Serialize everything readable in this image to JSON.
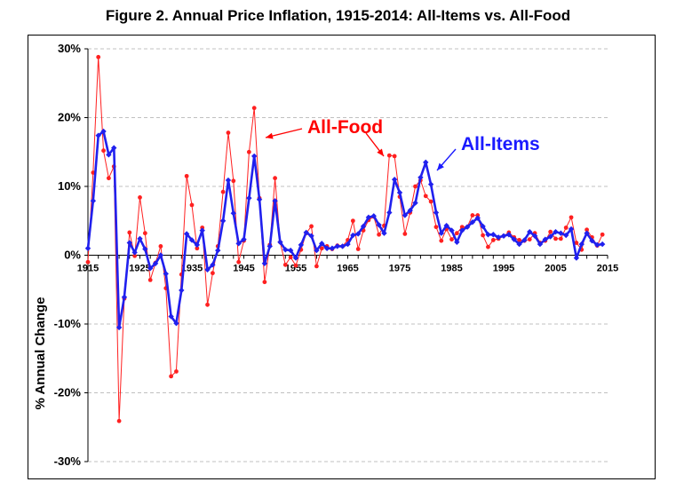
{
  "title": "Figure 2. Annual Price Inflation, 1915-2014: All-Items vs. All-Food",
  "colors": {
    "food": "#ff2020",
    "items": "#2020ee",
    "food_label": "#ff0000",
    "items_label": "#1a1aff",
    "grid": "#c0c0c0"
  },
  "chart_data": {
    "type": "line",
    "title": "Figure 2. Annual Price Inflation, 1915-2014: All-Items vs. All-Food",
    "xlabel": "",
    "ylabel": "% Annual Change",
    "xlim": [
      1915,
      2015
    ],
    "ylim": [
      -30,
      30
    ],
    "x_ticks": [
      1915,
      1925,
      1935,
      1945,
      1955,
      1965,
      1975,
      1985,
      1995,
      2005,
      2015
    ],
    "x_tick_labels": [
      "1915",
      "1925",
      "1935",
      "1945",
      "1955",
      "1965",
      "1975",
      "1985",
      "1995",
      "2005",
      "2015"
    ],
    "y_ticks": [
      -30,
      -20,
      -10,
      0,
      10,
      20,
      30
    ],
    "y_tick_labels": [
      "-30%",
      "-20%",
      "-10%",
      "0%",
      "10%",
      "20%",
      "30%"
    ],
    "grid": "horizontal dashed",
    "annotations": [
      {
        "text": "All-Food",
        "series": "food"
      },
      {
        "text": "All-Items",
        "series": "items"
      }
    ],
    "series": [
      {
        "key": "items",
        "x": [
          1915,
          1916,
          1917,
          1918,
          1919,
          1920,
          1921,
          1922,
          1923,
          1924,
          1925,
          1926,
          1927,
          1928,
          1929,
          1930,
          1931,
          1932,
          1933,
          1934,
          1935,
          1936,
          1937,
          1938,
          1939,
          1940,
          1941,
          1942,
          1943,
          1944,
          1945,
          1946,
          1947,
          1948,
          1949,
          1950,
          1951,
          1952,
          1953,
          1954,
          1955,
          1956,
          1957,
          1958,
          1959,
          1960,
          1961,
          1962,
          1963,
          1964,
          1965,
          1966,
          1967,
          1968,
          1969,
          1970,
          1971,
          1972,
          1973,
          1974,
          1975,
          1976,
          1977,
          1978,
          1979,
          1980,
          1981,
          1982,
          1983,
          1984,
          1985,
          1986,
          1987,
          1988,
          1989,
          1990,
          1991,
          1992,
          1993,
          1994,
          1995,
          1996,
          1997,
          1998,
          1999,
          2000,
          2001,
          2002,
          2003,
          2004,
          2005,
          2006,
          2007,
          2008,
          2009,
          2010,
          2011,
          2012,
          2013,
          2014
        ],
        "values": [
          1.0,
          7.9,
          17.4,
          18.0,
          14.6,
          15.6,
          -10.5,
          -6.1,
          1.8,
          0.4,
          2.4,
          0.9,
          -1.9,
          -1.2,
          0.0,
          -2.7,
          -8.9,
          -9.9,
          -5.1,
          3.1,
          2.2,
          1.5,
          3.6,
          -2.1,
          -1.4,
          0.7,
          5.0,
          10.9,
          6.1,
          1.7,
          2.3,
          8.3,
          14.4,
          8.1,
          -1.2,
          1.3,
          7.9,
          1.9,
          0.8,
          0.7,
          -0.4,
          1.5,
          3.3,
          2.8,
          0.7,
          1.7,
          1.0,
          1.0,
          1.3,
          1.3,
          1.6,
          2.9,
          3.1,
          4.2,
          5.5,
          5.7,
          4.4,
          3.2,
          6.2,
          11.0,
          9.1,
          5.8,
          6.5,
          7.6,
          11.3,
          13.5,
          10.3,
          6.2,
          3.2,
          4.3,
          3.6,
          1.9,
          3.6,
          4.1,
          4.8,
          5.4,
          4.2,
          3.0,
          3.0,
          2.6,
          2.8,
          3.0,
          2.3,
          1.6,
          2.2,
          3.4,
          2.8,
          1.6,
          2.3,
          2.7,
          3.4,
          3.2,
          2.9,
          3.8,
          -0.4,
          1.6,
          3.2,
          2.1,
          1.5,
          1.6
        ]
      },
      {
        "key": "food",
        "x": [
          1915,
          1916,
          1917,
          1918,
          1919,
          1920,
          1921,
          1922,
          1923,
          1924,
          1925,
          1926,
          1927,
          1928,
          1929,
          1930,
          1931,
          1932,
          1933,
          1934,
          1935,
          1936,
          1937,
          1938,
          1939,
          1940,
          1941,
          1942,
          1943,
          1944,
          1945,
          1946,
          1947,
          1948,
          1949,
          1950,
          1951,
          1952,
          1953,
          1954,
          1955,
          1956,
          1957,
          1958,
          1959,
          1960,
          1961,
          1962,
          1963,
          1964,
          1965,
          1966,
          1967,
          1968,
          1969,
          1970,
          1971,
          1972,
          1973,
          1974,
          1975,
          1976,
          1977,
          1978,
          1979,
          1980,
          1981,
          1982,
          1983,
          1984,
          1985,
          1986,
          1987,
          1988,
          1989,
          1990,
          1991,
          1992,
          1993,
          1994,
          1995,
          1996,
          1997,
          1998,
          1999,
          2000,
          2001,
          2002,
          2003,
          2004,
          2005,
          2006,
          2007,
          2008,
          2009,
          2010,
          2011,
          2012,
          2013,
          2014
        ],
        "values": [
          -1.0,
          12.0,
          28.8,
          15.2,
          11.2,
          12.9,
          -24.1,
          -6.3,
          3.3,
          -0.1,
          8.4,
          3.2,
          -3.6,
          -1.1,
          1.3,
          -4.8,
          -17.6,
          -16.9,
          -2.8,
          11.5,
          7.3,
          1.0,
          4.0,
          -7.2,
          -2.6,
          1.3,
          9.2,
          17.8,
          10.8,
          -1.0,
          2.1,
          15.0,
          21.4,
          8.3,
          -3.9,
          1.5,
          11.2,
          1.9,
          -1.4,
          -0.3,
          -1.5,
          0.8,
          3.2,
          4.2,
          -1.6,
          1.0,
          1.3,
          0.9,
          1.4,
          1.3,
          2.2,
          5.0,
          0.9,
          3.6,
          5.1,
          5.6,
          3.0,
          4.3,
          14.5,
          14.4,
          8.5,
          3.1,
          6.2,
          10.0,
          10.9,
          8.6,
          7.8,
          4.1,
          2.1,
          3.8,
          2.3,
          3.2,
          4.1,
          4.1,
          5.8,
          5.8,
          2.9,
          1.2,
          2.2,
          2.4,
          2.8,
          3.3,
          2.6,
          2.2,
          2.1,
          2.3,
          3.2,
          1.8,
          2.1,
          3.4,
          2.4,
          2.4,
          4.0,
          5.5,
          1.8,
          0.8,
          3.7,
          2.6,
          1.4,
          3.0
        ]
      }
    ]
  }
}
